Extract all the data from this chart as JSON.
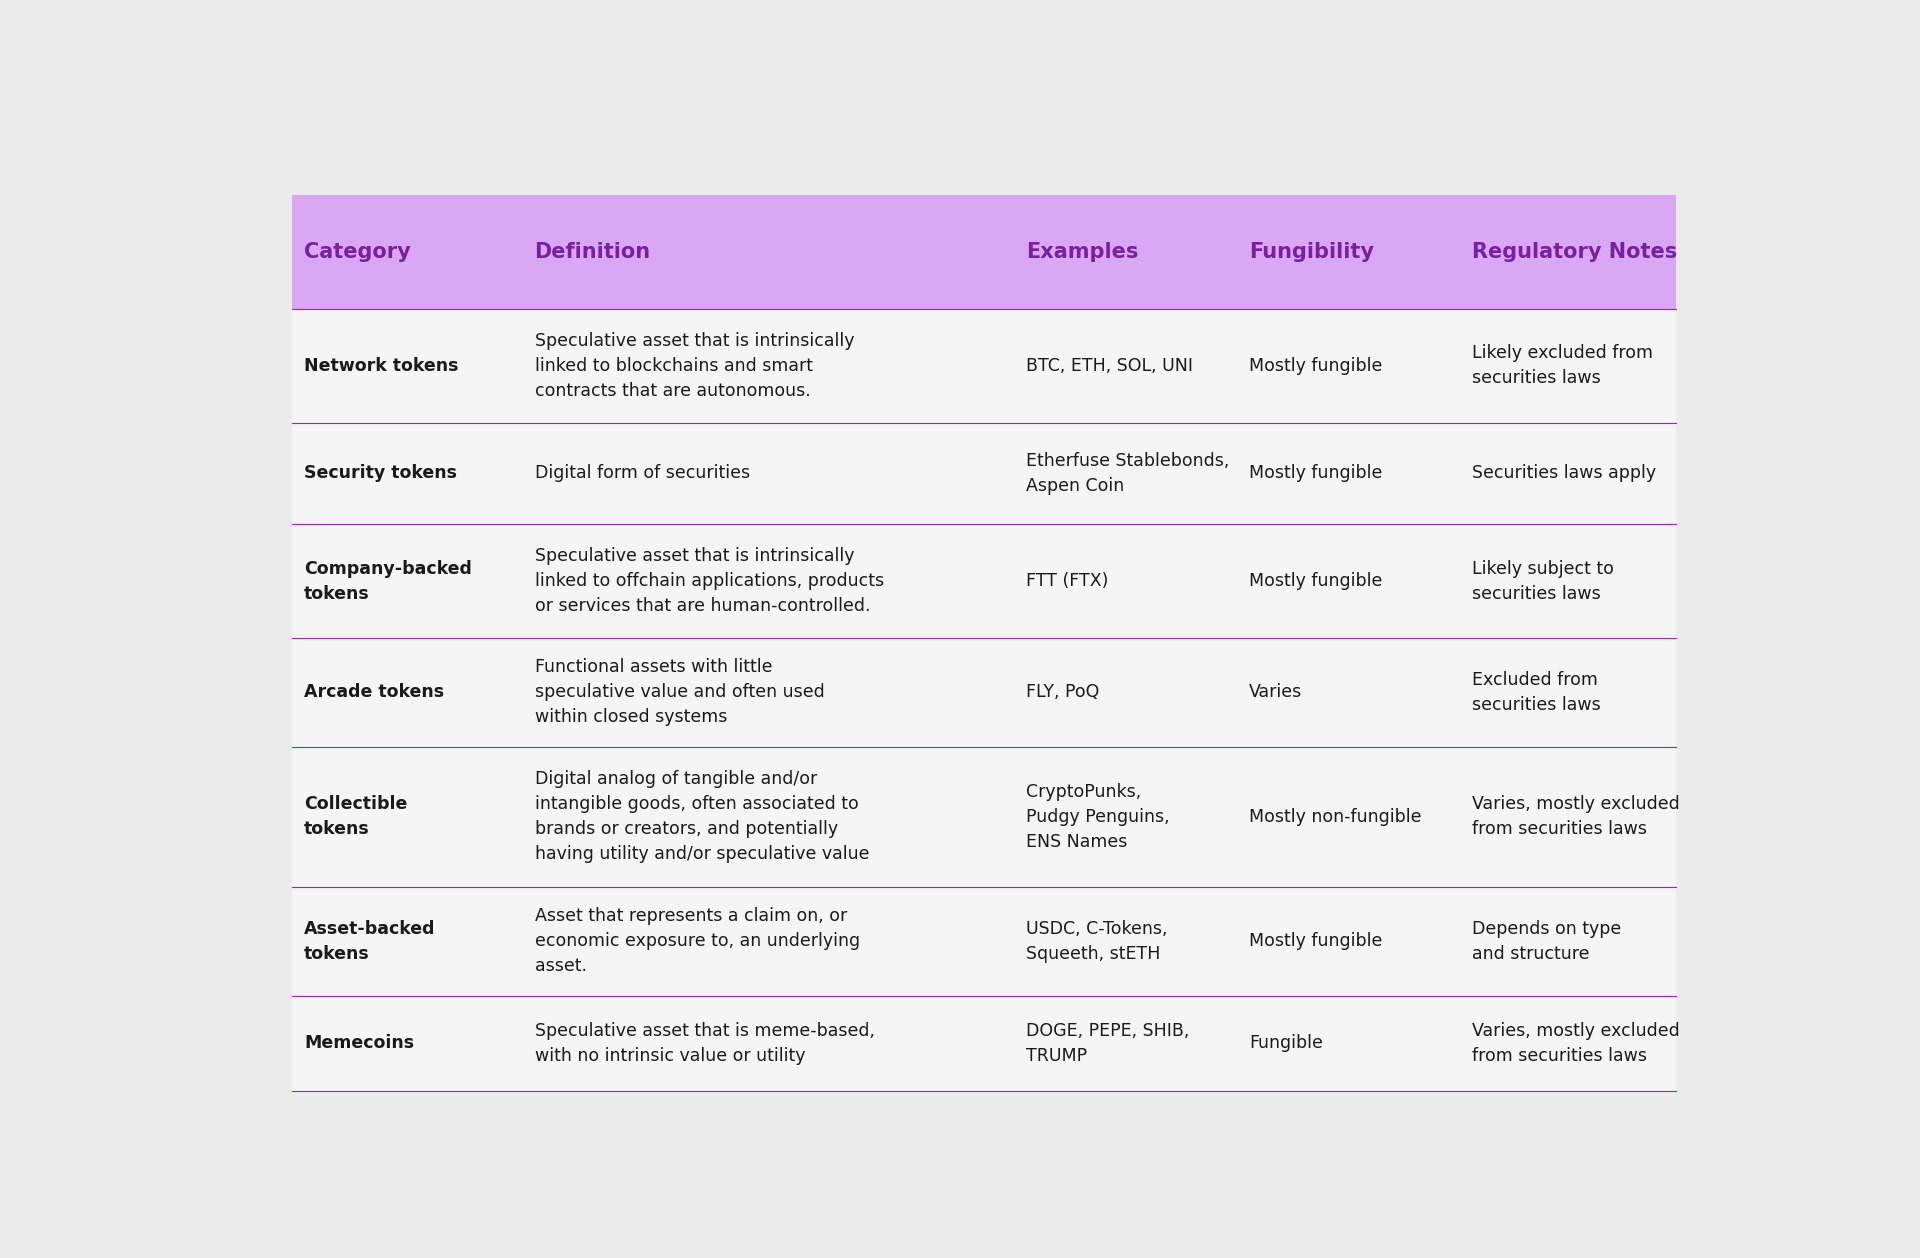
{
  "background_color": "#ebebeb",
  "table_background": "#f5f5f5",
  "header_background": "#d9a8f5",
  "header_text_color": "#7b1fa2",
  "divider_color": "#9c27b0",
  "body_text_color": "#1a1a1a",
  "columns": [
    "Category",
    "Definition",
    "Examples",
    "Fungibility",
    "Regulatory Notes"
  ],
  "header_fontsize": 15,
  "body_fontsize": 12.5,
  "rows": [
    {
      "category": "Network tokens",
      "definition": "Speculative asset that is intrinsically\nlinked to blockchains and smart\ncontracts that are autonomous.",
      "examples": "BTC, ETH, SOL, UNI",
      "fungibility": "Mostly fungible",
      "regulatory": "Likely excluded from\nsecurities laws"
    },
    {
      "category": "Security tokens",
      "definition": "Digital form of securities",
      "examples": "Etherfuse Stablebonds,\nAspen Coin",
      "fungibility": "Mostly fungible",
      "regulatory": "Securities laws apply"
    },
    {
      "category": "Company-backed\ntokens",
      "definition": "Speculative asset that is intrinsically\nlinked to offchain applications, products\nor services that are human-controlled.",
      "examples": "FTT (FTX)",
      "fungibility": "Mostly fungible",
      "regulatory": "Likely subject to\nsecurities laws"
    },
    {
      "category": "Arcade tokens",
      "definition": "Functional assets with little\nspeculative value and often used\nwithin closed systems",
      "examples": "FLY, PoQ",
      "fungibility": "Varies",
      "regulatory": "Excluded from\nsecurities laws"
    },
    {
      "category": "Collectible\ntokens",
      "definition": "Digital analog of tangible and/or\nintangible goods, often associated to\nbrands or creators, and potentially\nhaving utility and/or speculative value",
      "examples": "CryptoPunks,\nPudgy Penguins,\nENS Names",
      "fungibility": "Mostly non-fungible",
      "regulatory": "Varies, mostly excluded\nfrom securities laws"
    },
    {
      "category": "Asset-backed\ntokens",
      "definition": "Asset that represents a claim on, or\neconomic exposure to, an underlying\nasset.",
      "examples": "USDC, C-Tokens,\nSqueeth, stETH",
      "fungibility": "Mostly fungible",
      "regulatory": "Depends on type\nand structure"
    },
    {
      "category": "Memecoins",
      "definition": "Speculative asset that is meme-based,\nwith no intrinsic value or utility",
      "examples": "DOGE, PEPE, SHIB,\nTRUMP",
      "fungibility": "Fungible",
      "regulatory": "Varies, mostly excluded\nfrom securities laws"
    }
  ]
}
